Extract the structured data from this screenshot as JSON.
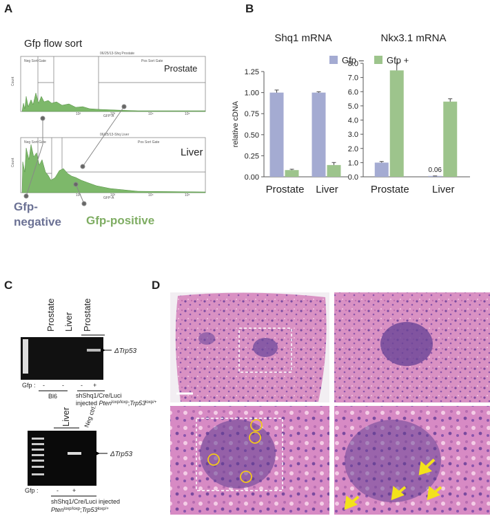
{
  "panel_labels": {
    "a": "A",
    "b": "B",
    "c": "C",
    "d": "D"
  },
  "flow_sort": {
    "title": "Gfp flow sort",
    "prostate_header": "06/25/13-Shq Prostate",
    "liver_header": "06/25/13-Shq Liver",
    "neg_gate": "Neg Sort Gate",
    "pos_gate": "Pos Sort Gate",
    "prostate": "Prostate",
    "liver": "Liver",
    "count": "Count",
    "x_axis": "GFP-A",
    "x_ticks": [
      "10²",
      "10³",
      "10⁴",
      "10⁵"
    ],
    "gfp_negative": [
      "Gfp-",
      "negative"
    ],
    "gfp_positive": "Gfp-positive"
  },
  "chart_data": [
    {
      "type": "bar",
      "title": "Shq1 mRNA",
      "y_label": "relative cDNA",
      "categories": [
        "Prostate",
        "Liver"
      ],
      "series": [
        {
          "color": "#a4abd2",
          "values": [
            1.0,
            1.0
          ],
          "errors": [
            0.03,
            0.01
          ]
        },
        {
          "color": "#9dc48c",
          "values": [
            0.08,
            0.14
          ],
          "errors": [
            0.01,
            0.03
          ]
        }
      ],
      "ylim": [
        0,
        1.25
      ],
      "yticks": [
        {
          "value": 0,
          "label": "0.00"
        },
        {
          "value": 0.25,
          "label": "0.25"
        },
        {
          "value": 0.5,
          "label": "0.50"
        },
        {
          "value": 0.75,
          "label": "0.75"
        },
        {
          "value": 1,
          "label": "1.00"
        },
        {
          "value": 1.25,
          "label": "1.25"
        }
      ]
    },
    {
      "type": "bar",
      "title": "Nkx3.1 mRNA",
      "categories": [
        "Prostate",
        "Liver"
      ],
      "series": [
        {
          "name": "Gfp –",
          "color": "#a4abd2",
          "values": [
            1.0,
            0.06
          ],
          "errors": [
            0.08,
            0
          ]
        },
        {
          "name": "Gfp +",
          "color": "#9dc48c",
          "values": [
            7.5,
            5.3
          ],
          "errors": [
            0.5,
            0.2
          ]
        }
      ],
      "ylim": [
        0,
        8
      ],
      "yticks": [
        {
          "value": 0,
          "label": "0.0"
        },
        {
          "value": 1,
          "label": "1.0"
        },
        {
          "value": 2,
          "label": "2.0"
        },
        {
          "value": 3,
          "label": "3.0"
        },
        {
          "value": 4,
          "label": "4.0"
        },
        {
          "value": 5,
          "label": "5.0"
        },
        {
          "value": 6,
          "label": "6.0"
        },
        {
          "value": 7,
          "label": "7.0"
        },
        {
          "value": 8,
          "label": "8.0"
        }
      ],
      "value_label_series": 0,
      "value_label_index": 1
    }
  ],
  "gel_top": {
    "lanes": [
      "Prostate",
      "Liver",
      "Prostate"
    ],
    "band": "ΔTrp53",
    "gfp": "Gfp :",
    "gfp_marks": [
      "-",
      "-",
      "-",
      "+"
    ],
    "group1": "Bl6",
    "group2_line1": "shShq1/Cre/Luci",
    "group2_line2": [
      "injected ",
      "Pten",
      "loxp/loxp",
      ";",
      "Trp53",
      "loxp/+"
    ]
  },
  "gel_bottom": {
    "lanes": [
      "Liver",
      "Neg ctrl."
    ],
    "band": "ΔTrp53",
    "gfp": "Gfp :",
    "gfp_marks": [
      "-",
      "+"
    ],
    "group_line1": "shShq1/Cre/Luci injected",
    "group_line2": [
      "Pten",
      "loxp/loxp",
      ";",
      "Trp53",
      "loxp/+"
    ]
  }
}
